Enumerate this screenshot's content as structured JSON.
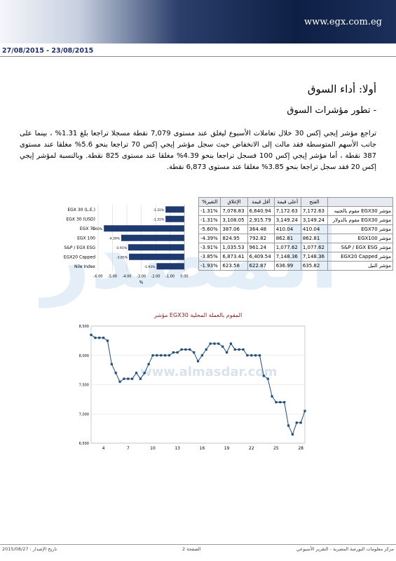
{
  "header": {
    "site": "www.egx.com.eg",
    "date_range": "27/08/2015 - 23/08/2015"
  },
  "heading": "أولا: أداء السوق",
  "subheading": "- تطور مؤشرات السوق",
  "paragraph": "تراجع مؤشر إيجي إكس 30 خلال تعاملات الأسبوع ليغلق عند مستوى 7,079 نقطة مسجلا تراجعا بلغ 1.31% ، بينما على جانب الأسهم المتوسطة فقد مالت إلى الانخفاض حيث سجل مؤشر إيجي إكس 70 تراجعا بنحو 5.6% مغلقا عند مستوى 387 نقطة ، أما مؤشر إيجي إكس 100 فسجل تراجعا بنحو 4.39% مغلقا عند مستوى 825 نقطة. وبالنسبة لمؤشر إيجي إكس 20 فقد سجل تراجعا بنحو 3.85% مغلقا عند مستوى 6,873 نقطة.",
  "watermark": "المصدر",
  "watermark_url": "www.almasdar.com",
  "table": {
    "columns": [
      "الفتح",
      "أعلى قيمة",
      "أقل قيمة",
      "الإغلاق",
      "التغير%"
    ],
    "rows": [
      [
        "مؤشر EGX30 مقوم بالجنيه",
        "7,172.63",
        "7,172.63",
        "6,640.94",
        "7,078.83",
        "-1.31%"
      ],
      [
        "مؤشر EGX30 مقوم بالدولار",
        "3,149.24",
        "3,149.24",
        "2,915.79",
        "3,108.05",
        "-1.31%"
      ],
      [
        "مؤشر EGX70",
        "410.04",
        "410.04",
        "364.48",
        "387.06",
        "-5.60%"
      ],
      [
        "مؤشر EGX100",
        "862.81",
        "862.81",
        "792.82",
        "824.95",
        "-4.39%"
      ],
      [
        "مؤشر S&P / EGX ESG",
        "1,077.62",
        "1,077.62",
        "961.24",
        "1,035.53",
        "-3.91%"
      ],
      [
        "مؤشر EGX20 Capped",
        "7,148.36",
        "7,148.36",
        "6,409.54",
        "6,873.41",
        "-3.85%"
      ],
      [
        "مؤشر النيل",
        "635.82",
        "636.99",
        "622.87",
        "623.58",
        "-1.93%"
      ]
    ]
  },
  "chart_data": [
    {
      "type": "hbar",
      "categories": [
        "EGX 30 (L.E.)",
        "EGX 30 (USD)",
        "EGX 70",
        "EGX 100",
        "S&P / EGX ESG",
        "EGX20 Capped",
        "Nile Index"
      ],
      "values": [
        -1.31,
        -1.31,
        -5.6,
        -4.39,
        -3.91,
        -3.85,
        -1.93
      ],
      "value_labels": [
        "-1.31%",
        "-1.31%",
        "-5.60%",
        "-4.39%",
        "-3.91%",
        "-3.85%",
        "-1.93%"
      ],
      "color": "#1f3a6e",
      "xlabel": "%",
      "xlim": [
        -6,
        0
      ],
      "xticks": [
        {
          "value": -6,
          "label": "-6.00"
        },
        {
          "value": -5,
          "label": "-5.00"
        },
        {
          "value": -4,
          "label": "-4.00"
        },
        {
          "value": -3,
          "label": "-3.00"
        },
        {
          "value": -2,
          "label": "-2.00"
        },
        {
          "value": -1,
          "label": "-1.00"
        },
        {
          "value": 0,
          "label": "0.00"
        }
      ],
      "grid": true
    },
    {
      "type": "line",
      "title": "مؤشر EGX30 المقوم بالعملة المحلية",
      "color": "#1f4e79",
      "categories": [
        null,
        null,
        null,
        "4",
        null,
        null,
        null,
        null,
        null,
        "7",
        null,
        null,
        null,
        null,
        null,
        "10",
        null,
        null,
        null,
        null,
        null,
        "13",
        null,
        null,
        null,
        null,
        null,
        "16",
        null,
        null,
        null,
        null,
        null,
        "19",
        null,
        null,
        null,
        null,
        null,
        "22",
        null,
        null,
        null,
        null,
        null,
        "25",
        null,
        null,
        null,
        null,
        null,
        "28",
        null
      ],
      "values": [
        8350,
        8300,
        8300,
        8300,
        8250,
        7850,
        7700,
        7550,
        7600,
        7600,
        7600,
        7700,
        7600,
        7700,
        7850,
        8000,
        8000,
        8000,
        8000,
        8000,
        8050,
        8050,
        8100,
        8100,
        8100,
        8050,
        7900,
        8000,
        8100,
        8200,
        8200,
        8200,
        8150,
        8050,
        8200,
        8100,
        8100,
        8100,
        8000,
        8000,
        8000,
        8000,
        7650,
        7600,
        7300,
        7200,
        7200,
        7200,
        6800,
        6650,
        6850,
        6850,
        7050
      ],
      "ylim": [
        6500,
        8500
      ],
      "yticks": [
        {
          "value": 6500,
          "label": "6,500"
        },
        {
          "value": 7000,
          "label": "7,000"
        },
        {
          "value": 7500,
          "label": "7,500"
        },
        {
          "value": 8000,
          "label": "8,000"
        },
        {
          "value": 8500,
          "label": "8,500"
        }
      ],
      "grid": true
    }
  ],
  "footer": {
    "left": "تاريخ الإصدار : 2015/08/27",
    "center": "الصفحة 2",
    "right": "مركز معلومات البورصة المصرية - التقرير الأسبوعي"
  }
}
